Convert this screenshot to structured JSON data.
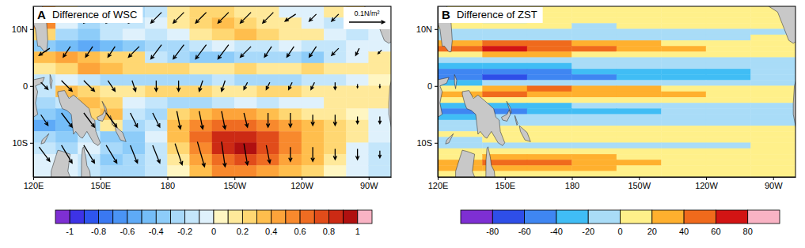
{
  "chart_data": [
    {
      "type": "heatmap",
      "panel": "A",
      "title": "Difference of WSC",
      "x": [
        125,
        135,
        145,
        155,
        165,
        175,
        185,
        195,
        205,
        215,
        225,
        235,
        245,
        255,
        265,
        275
      ],
      "y": [
        13,
        11,
        9,
        7,
        5,
        3,
        1,
        -1,
        -3,
        -5,
        -7,
        -9,
        -11,
        -13,
        -15
      ],
      "values": [
        [
          0.4,
          0.1,
          -0.2,
          -0.3,
          -0.3,
          -0.2,
          0.1,
          0.2,
          0.2,
          0.1,
          0.1,
          -0.1,
          -0.1,
          0.1,
          0.2,
          0.1
        ],
        [
          0.5,
          -0.1,
          -0.3,
          -0.2,
          -0.2,
          -0.1,
          0.1,
          0.2,
          0.3,
          0.2,
          0.1,
          0.1,
          -0.1,
          -0.2,
          0.1,
          0.1
        ],
        [
          0.2,
          -0.3,
          -0.4,
          -0.2,
          -0.1,
          -0.2,
          -0.1,
          0.1,
          0.2,
          0.3,
          0.2,
          0.1,
          0.1,
          -0.1,
          -0.2,
          -0.1
        ],
        [
          -0.4,
          -0.5,
          -0.6,
          -0.5,
          -0.4,
          -0.3,
          -0.3,
          -0.2,
          -0.1,
          -0.2,
          -0.2,
          -0.1,
          -0.2,
          -0.2,
          -0.1,
          -0.1
        ],
        [
          0.3,
          0.4,
          0.3,
          0.2,
          0.2,
          -0.2,
          -0.3,
          -0.4,
          -0.4,
          -0.3,
          -0.3,
          -0.3,
          -0.4,
          -0.2,
          -0.1,
          0.1
        ],
        [
          0.1,
          0.2,
          0.4,
          0.3,
          0.2,
          0.2,
          0.2,
          0.1,
          0.1,
          0.2,
          0.1,
          0.1,
          0.2,
          0.1,
          0.1,
          0.1
        ],
        [
          -0.2,
          -0.1,
          -0.2,
          -0.3,
          -0.3,
          -0.3,
          -0.3,
          -0.3,
          -0.2,
          -0.3,
          -0.3,
          -0.3,
          -0.2,
          -0.2,
          -0.1,
          0
        ],
        [
          -0.2,
          0.3,
          0.2,
          0.1,
          0.1,
          0.2,
          0.2,
          0.2,
          0.1,
          0.1,
          0.2,
          0.2,
          0.1,
          0.1,
          0.1,
          0.1
        ],
        [
          -0.3,
          -0.2,
          0.3,
          0.2,
          -0.1,
          -0.2,
          -0.3,
          -0.3,
          -0.2,
          -0.1,
          -0.2,
          -0.1,
          -0.1,
          0.1,
          0.1,
          0.1
        ],
        [
          -0.4,
          -0.5,
          0.2,
          0.3,
          -0.2,
          -0.3,
          0.2,
          0.3,
          0.4,
          0.4,
          0.3,
          0.2,
          0.1,
          0.1,
          0,
          -0.1
        ],
        [
          -0.6,
          -0.5,
          -0.3,
          0.1,
          -0.3,
          -0.2,
          0.3,
          0.5,
          0.6,
          0.6,
          0.5,
          0.4,
          0.3,
          0.2,
          0.1,
          -0.1
        ],
        [
          -0.3,
          -0.4,
          -0.2,
          -0.4,
          -0.4,
          -0.1,
          0.3,
          0.6,
          0.8,
          0.8,
          0.7,
          0.5,
          0.3,
          0.2,
          0.1,
          -0.1
        ],
        [
          -0.2,
          -0.3,
          -0.1,
          -0.3,
          -0.4,
          -0.2,
          0.2,
          0.5,
          0.8,
          0.9,
          0.7,
          0.5,
          0.3,
          0.2,
          -0.1,
          -0.2
        ],
        [
          -0.1,
          -0.1,
          -0.2,
          -0.4,
          -0.3,
          -0.2,
          0.1,
          0.4,
          0.6,
          0.7,
          0.6,
          0.4,
          0.3,
          0.1,
          -0.1,
          -0.2
        ],
        [
          -0.1,
          -0.1,
          -0.2,
          -0.3,
          -0.3,
          -0.2,
          0,
          0.3,
          0.5,
          0.5,
          0.4,
          0.3,
          0.2,
          0,
          -0.1,
          -0.2
        ]
      ],
      "xlim": [
        120,
        280
      ],
      "ylim": [
        -16,
        14
      ],
      "xticks": [
        {
          "value": 120,
          "label": "120E"
        },
        {
          "value": 150,
          "label": "150E"
        },
        180,
        {
          "value": 210,
          "label": "150W"
        },
        {
          "value": 240,
          "label": "120W"
        },
        {
          "value": 270,
          "label": "90W"
        }
      ],
      "yticks": [
        {
          "value": 10,
          "label": "10N"
        },
        0,
        {
          "value": -10,
          "label": "10S"
        }
      ],
      "colorbar": {
        "levels": [
          -1,
          -0.9,
          -0.8,
          -0.7,
          -0.6,
          -0.5,
          -0.4,
          -0.3,
          -0.2,
          -0.1,
          0,
          0.1,
          0.2,
          0.3,
          0.4,
          0.5,
          0.6,
          0.7,
          0.8,
          0.9,
          1
        ],
        "ticks": [
          -1,
          -0.8,
          -0.6,
          -0.4,
          -0.2,
          0,
          0.2,
          0.4,
          0.6,
          0.8,
          1
        ],
        "colors": [
          "#7e2fd3",
          "#3d33e6",
          "#2e55ee",
          "#3a78f2",
          "#4a94f5",
          "#5eaaf7",
          "#74bdf8",
          "#8dccf9",
          "#a8d9fa",
          "#c4e6fb",
          "#dff1fc",
          "#fff6c2",
          "#ffe99a",
          "#ffd772",
          "#ffbe4d",
          "#fda43a",
          "#f8892d",
          "#ef6c22",
          "#e14c1a",
          "#cc2a14",
          "#b01010",
          "#f9b3c4"
        ]
      },
      "vectors": {
        "x": [
          125,
          135,
          145,
          155,
          165,
          175,
          185,
          195,
          205,
          215,
          225,
          235,
          245,
          255,
          265,
          275
        ],
        "y": [
          12,
          6,
          0,
          -6,
          -12
        ],
        "u": [
          [
            -0.05,
            -0.03,
            -0.03,
            -0.03,
            -0.03,
            -0.03,
            -0.03,
            -0.03,
            -0.03,
            -0.03,
            -0.03,
            -0.03,
            -0.02,
            -0.02,
            -0.02,
            -0.02
          ],
          [
            -0.03,
            -0.02,
            -0.02,
            -0.02,
            -0.03,
            -0.03,
            -0.03,
            -0.03,
            -0.03,
            -0.03,
            -0.02,
            -0.02,
            -0.02,
            -0.02,
            -0.01,
            -0.01
          ],
          [
            0.02,
            0.03,
            0.03,
            0.02,
            0.01,
            0,
            0,
            -0.01,
            -0.01,
            -0.01,
            -0.01,
            -0.01,
            -0.01,
            0,
            0,
            0
          ],
          [
            0.02,
            0.03,
            0.03,
            0.03,
            0.02,
            0.02,
            0.01,
            0.01,
            0.01,
            0.01,
            0,
            0,
            0,
            0,
            0,
            0
          ],
          [
            0.03,
            0.03,
            0.03,
            0.03,
            0.02,
            0.02,
            0.02,
            0.02,
            0.01,
            0.01,
            0.01,
            0,
            0,
            0,
            0,
            0
          ]
        ],
        "v": [
          [
            0,
            -0.02,
            -0.03,
            -0.03,
            -0.03,
            -0.03,
            -0.03,
            -0.03,
            -0.03,
            -0.03,
            -0.03,
            -0.02,
            -0.02,
            -0.02,
            -0.02,
            -0.02
          ],
          [
            -0.02,
            -0.03,
            -0.03,
            -0.03,
            -0.03,
            -0.04,
            -0.04,
            -0.04,
            -0.04,
            -0.03,
            -0.03,
            -0.03,
            -0.03,
            -0.02,
            -0.02,
            -0.01
          ],
          [
            -0.02,
            -0.03,
            -0.03,
            -0.03,
            -0.03,
            -0.03,
            -0.03,
            -0.03,
            -0.03,
            -0.02,
            -0.02,
            -0.02,
            -0.02,
            -0.02,
            -0.01,
            -0.01
          ],
          [
            -0.03,
            -0.04,
            -0.04,
            -0.04,
            -0.04,
            -0.04,
            -0.05,
            -0.05,
            -0.05,
            -0.04,
            -0.04,
            -0.04,
            -0.03,
            -0.03,
            -0.02,
            -0.02
          ],
          [
            -0.04,
            -0.05,
            -0.05,
            -0.05,
            -0.05,
            -0.05,
            -0.06,
            -0.07,
            -0.07,
            -0.06,
            -0.05,
            -0.04,
            -0.04,
            -0.03,
            -0.03,
            -0.02
          ]
        ],
        "reference": {
          "value": 0.1,
          "label": "0.1N/m²"
        }
      }
    },
    {
      "type": "heatmap",
      "panel": "B",
      "title": "Difference of ZST",
      "x": [
        130,
        150,
        170,
        190,
        210,
        230,
        250,
        270
      ],
      "y": [
        13.5,
        12.5,
        11.5,
        10.5,
        9.5,
        8.5,
        7.5,
        6.5,
        5.5,
        4.5,
        3.5,
        2.5,
        1.5,
        0.5,
        -0.5,
        -1.5,
        -2.5,
        -3.5,
        -4.5,
        -5.5,
        -6.5,
        -7.5,
        -8.5,
        -9.5,
        -10.5,
        -11.5,
        -12.5,
        -13.5,
        -14.5,
        -15.5
      ],
      "values": [
        [
          10,
          10,
          10,
          10,
          10,
          10,
          10,
          10
        ],
        [
          10,
          10,
          10,
          10,
          10,
          10,
          10,
          10
        ],
        [
          10,
          -10,
          10,
          10,
          10,
          10,
          10,
          10
        ],
        [
          10,
          10,
          10,
          -10,
          10,
          10,
          10,
          10
        ],
        [
          -10,
          -10,
          -10,
          -10,
          -10,
          -10,
          -10,
          -10
        ],
        [
          -10,
          -10,
          -10,
          -10,
          -10,
          -10,
          -10,
          10
        ],
        [
          30,
          50,
          50,
          30,
          30,
          10,
          10,
          10
        ],
        [
          50,
          70,
          50,
          50,
          30,
          30,
          10,
          10
        ],
        [
          10,
          30,
          30,
          10,
          10,
          10,
          10,
          10
        ],
        [
          -10,
          -10,
          -10,
          -10,
          -10,
          -10,
          -10,
          -10
        ],
        [
          -30,
          -30,
          -30,
          -10,
          -10,
          -10,
          -10,
          -10
        ],
        [
          -50,
          -50,
          -50,
          -30,
          -30,
          -30,
          -30,
          -10
        ],
        [
          -50,
          -70,
          -50,
          -50,
          -30,
          -30,
          -30,
          -10
        ],
        [
          -30,
          -10,
          -10,
          -10,
          -10,
          -10,
          -10,
          -10
        ],
        [
          10,
          30,
          50,
          30,
          30,
          10,
          10,
          10
        ],
        [
          30,
          50,
          30,
          30,
          30,
          30,
          10,
          10
        ],
        [
          10,
          10,
          10,
          10,
          10,
          10,
          10,
          10
        ],
        [
          -30,
          -30,
          -30,
          -10,
          -10,
          -10,
          -10,
          -10
        ],
        [
          -50,
          -50,
          -30,
          -30,
          -30,
          -10,
          -10,
          -10
        ],
        [
          -30,
          -10,
          -10,
          -10,
          -10,
          -10,
          -10,
          -10
        ],
        [
          -10,
          -10,
          -10,
          -10,
          -10,
          -10,
          -10,
          -10
        ],
        [
          -10,
          10,
          10,
          10,
          10,
          10,
          10,
          10
        ],
        [
          10,
          10,
          10,
          10,
          10,
          10,
          10,
          10
        ],
        [
          -10,
          10,
          10,
          10,
          10,
          10,
          10,
          10
        ],
        [
          -10,
          -10,
          -10,
          -10,
          -10,
          -10,
          -10,
          10
        ],
        [
          10,
          10,
          10,
          10,
          10,
          10,
          10,
          10
        ],
        [
          10,
          30,
          30,
          30,
          10,
          10,
          10,
          10
        ],
        [
          30,
          50,
          50,
          30,
          30,
          10,
          10,
          10
        ],
        [
          30,
          30,
          30,
          30,
          10,
          10,
          10,
          10
        ],
        [
          10,
          10,
          10,
          10,
          10,
          10,
          10,
          10
        ]
      ],
      "xlim": [
        120,
        280
      ],
      "ylim": [
        -16,
        14
      ],
      "xticks": [
        {
          "value": 120,
          "label": "120E"
        },
        {
          "value": 150,
          "label": "150E"
        },
        180,
        {
          "value": 210,
          "label": "150W"
        },
        {
          "value": 240,
          "label": "120W"
        },
        {
          "value": 270,
          "label": "90W"
        }
      ],
      "yticks": [
        {
          "value": 10,
          "label": "10N"
        },
        0,
        {
          "value": -10,
          "label": "10S"
        }
      ],
      "colorbar": {
        "levels": [
          -80,
          -60,
          -40,
          -20,
          0,
          20,
          40,
          60,
          80
        ],
        "ticks": [
          -80,
          -60,
          -40,
          -20,
          0,
          20,
          40,
          60,
          80
        ],
        "colors": [
          "#7e2fd3",
          "#2e4ee8",
          "#3f86f2",
          "#40bdf5",
          "#a9dcf7",
          "#fff08a",
          "#ffb02e",
          "#f06a1c",
          "#d21414",
          "#f9b3c4"
        ]
      }
    }
  ]
}
